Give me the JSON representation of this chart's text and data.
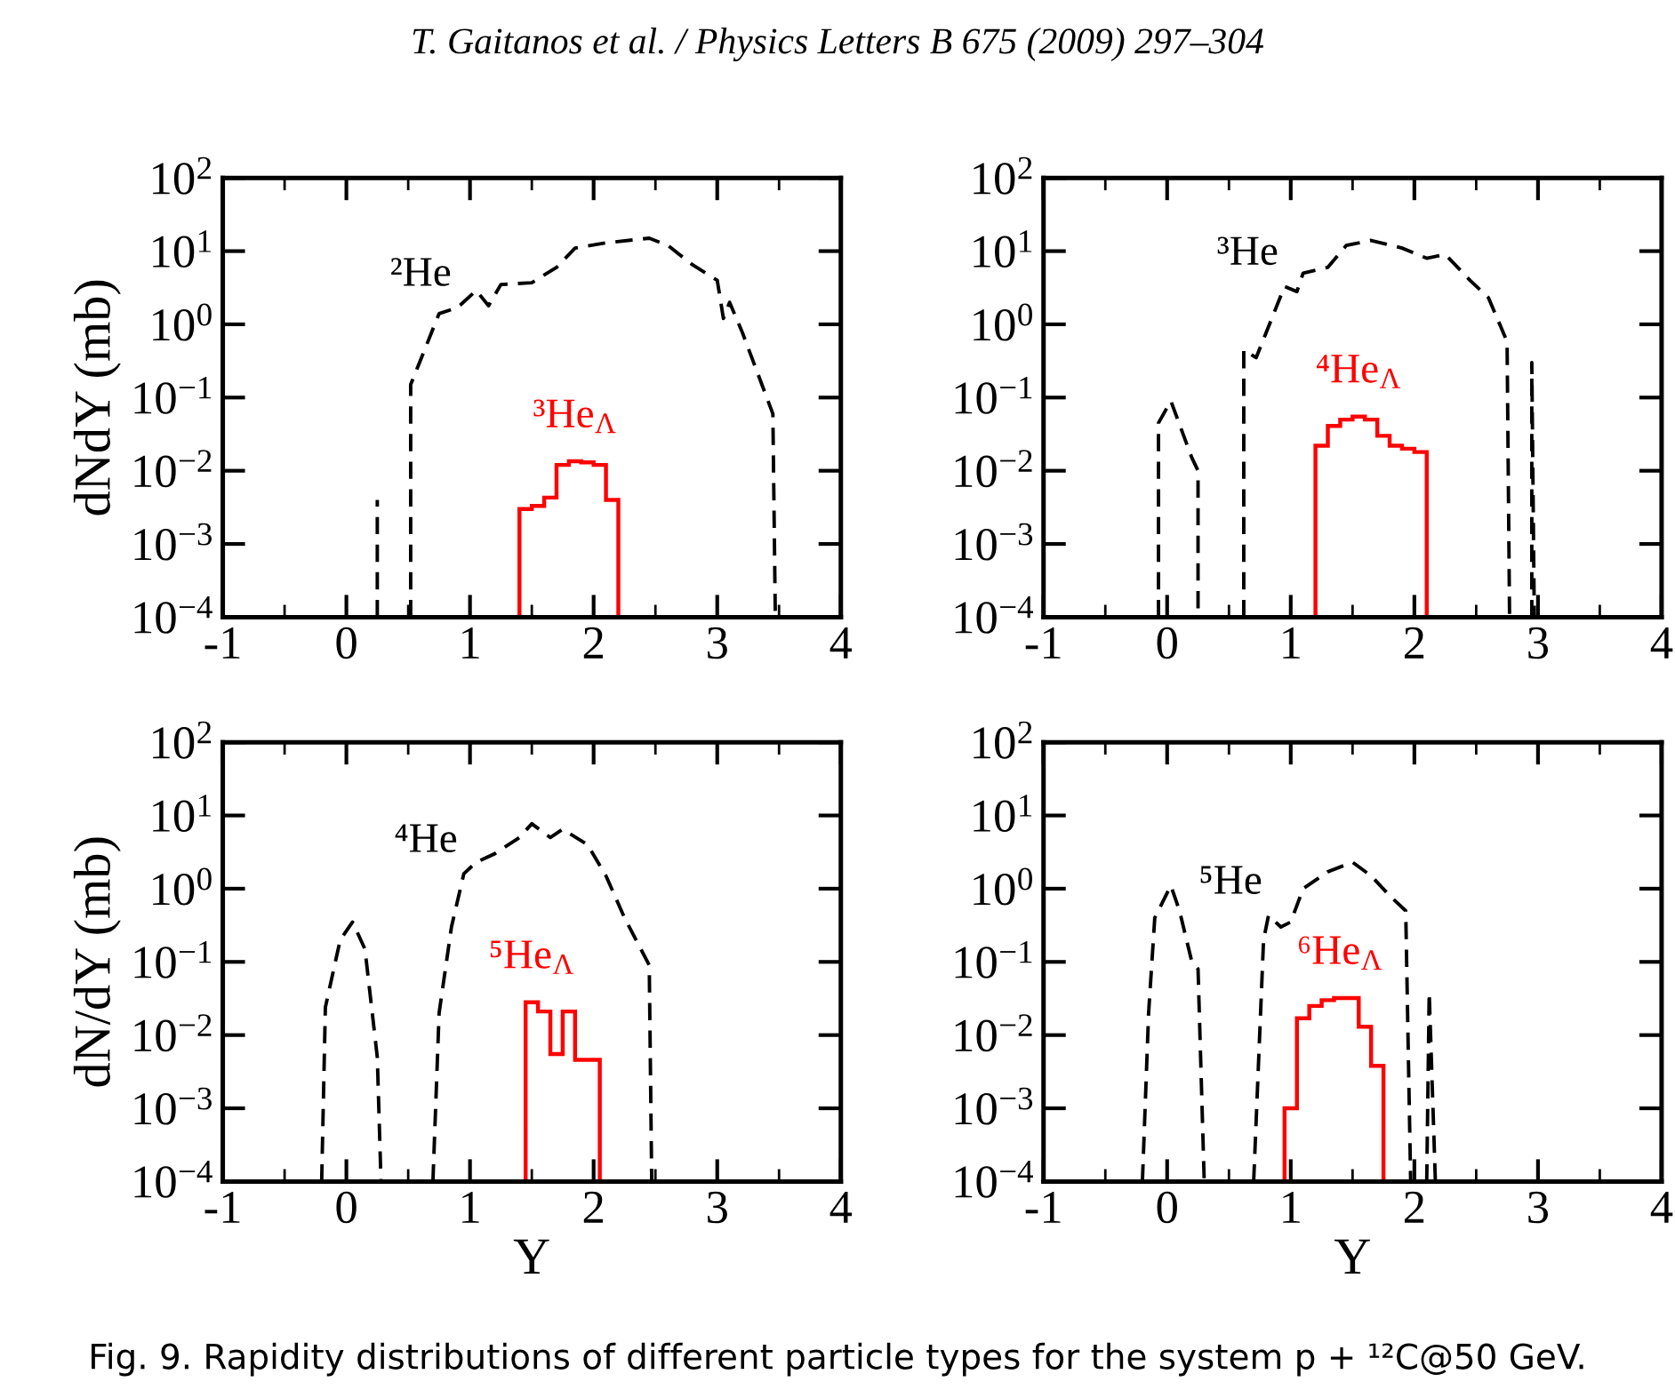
{
  "chart_data": [
    {
      "type": "line",
      "ylabel": "dNdY (mb)",
      "log": true,
      "xlim": [
        -1,
        4
      ],
      "xticks": [
        -1,
        0,
        1,
        2,
        3,
        4
      ],
      "ylim": [
        0.0001,
        100
      ],
      "yticks": [
        {
          "value": 0.0001,
          "label": "10$^{−4}$"
        },
        {
          "value": 0.001,
          "label": "10$^{−3}$"
        },
        {
          "value": 0.01,
          "label": "10$^{−2}$"
        },
        {
          "value": 0.1,
          "label": "10$^{−1}$"
        },
        {
          "value": 1,
          "label": "10$^{0}$"
        },
        {
          "value": 10,
          "label": "10$^{1}$"
        },
        {
          "value": 100,
          "label": "10$^{2}$"
        }
      ],
      "annotations": [
        "T. Gaitanos et al. / Physics Letters B 675 (2009) 297–304"
      ],
      "series": [
        {
          "name": "²He",
          "color": "#000000",
          "line_style": "dashed",
          "x": [
            0.25,
            0.25,
            null,
            0.52,
            0.52,
            0.75,
            0.9,
            1.05,
            1.15,
            1.25,
            1.5,
            1.7,
            1.85,
            2.1,
            2.45,
            2.6,
            2.8,
            3.0,
            3.05,
            3.1,
            3.2,
            3.45,
            3.47
          ],
          "values": [
            0.0001,
            0.004,
            null,
            0.0001,
            0.15,
            1.4,
            1.7,
            2.9,
            1.8,
            3.5,
            3.7,
            6,
            11,
            13,
            15,
            12,
            6.5,
            4,
            1.2,
            2,
            0.8,
            0.06,
            0.0001
          ]
        },
        {
          "name": "³He$_{Λ}$",
          "color": "#ff0000",
          "type": "histogram",
          "bins": [
            1.4,
            1.5,
            1.6,
            1.7,
            1.8,
            1.9,
            2.0,
            2.1,
            2.2
          ],
          "values": [
            0.003,
            0.0033,
            0.0043,
            0.012,
            0.0135,
            0.013,
            0.012,
            0.004
          ]
        }
      ]
    },
    {
      "type": "line",
      "log": true,
      "xlim": [
        -1,
        4
      ],
      "xticks": [
        -1,
        0,
        1,
        2,
        3,
        4
      ],
      "ylim": [
        0.0001,
        100
      ],
      "yticks": [
        {
          "value": 0.0001,
          "label": "10$^{−4}$"
        },
        {
          "value": 0.001,
          "label": "10$^{−3}$"
        },
        {
          "value": 0.01,
          "label": "10$^{−2}$"
        },
        {
          "value": 0.1,
          "label": "10$^{−1}$"
        },
        {
          "value": 1,
          "label": "10$^{0}$"
        },
        {
          "value": 10,
          "label": "10$^{1}$"
        },
        {
          "value": 100,
          "label": "10$^{2}$"
        }
      ],
      "series": [
        {
          "name": "³He",
          "color": "#000000",
          "line_style": "dashed",
          "x": [
            -0.07,
            -0.07,
            0.03,
            0.2,
            0.25,
            0.25,
            null,
            0.62,
            0.62,
            0.72,
            0.95,
            1.05,
            1.1,
            1.3,
            1.45,
            1.65,
            1.9,
            2.1,
            2.25,
            2.45,
            2.6,
            2.75,
            2.77,
            null,
            2.95,
            2.95,
            2.97
          ],
          "values": [
            0.0001,
            0.045,
            0.09,
            0.015,
            0.01,
            0.0001,
            null,
            0.0001,
            0.45,
            0.35,
            3.3,
            2.8,
            5,
            6,
            12,
            14,
            11,
            8,
            9,
            4,
            2.3,
            0.58,
            0.0001,
            null,
            0.0001,
            0.3,
            0.0001
          ]
        },
        {
          "name": "⁴He$_{Λ}$",
          "color": "#ff0000",
          "type": "histogram",
          "bins": [
            1.2,
            1.3,
            1.4,
            1.5,
            1.6,
            1.7,
            1.8,
            1.9,
            2.0,
            2.1
          ],
          "values": [
            0.022,
            0.041,
            0.05,
            0.055,
            0.05,
            0.03,
            0.022,
            0.02,
            0.018
          ]
        }
      ]
    },
    {
      "type": "line",
      "xlabel": "Y",
      "ylabel": "dN/dY (mb)",
      "log": true,
      "xlim": [
        -1,
        4
      ],
      "xticks": [
        -1,
        0,
        1,
        2,
        3,
        4
      ],
      "ylim": [
        0.0001,
        100
      ],
      "yticks": [
        {
          "value": 0.0001,
          "label": "10$^{−4}$"
        },
        {
          "value": 0.001,
          "label": "10$^{−3}$"
        },
        {
          "value": 0.01,
          "label": "10$^{−2}$"
        },
        {
          "value": 0.1,
          "label": "10$^{−1}$"
        },
        {
          "value": 1,
          "label": "10$^{0}$"
        },
        {
          "value": 10,
          "label": "10$^{1}$"
        },
        {
          "value": 100,
          "label": "10$^{2}$"
        }
      ],
      "series": [
        {
          "name": "⁴He",
          "color": "#000000",
          "line_style": "dashed",
          "x": [
            -0.2,
            -0.17,
            -0.05,
            0.05,
            0.15,
            0.25,
            0.28,
            null,
            0.7,
            0.75,
            0.85,
            0.95,
            1.05,
            1.2,
            1.4,
            1.5,
            1.65,
            1.75,
            1.95,
            2.1,
            2.25,
            2.45,
            2.47
          ],
          "values": [
            0.0001,
            0.024,
            0.2,
            0.35,
            0.15,
            0.005,
            0.0001,
            null,
            0.0001,
            0.02,
            0.3,
            1.6,
            2.3,
            3,
            5,
            7.7,
            5,
            6.5,
            4,
            1.5,
            0.4,
            0.09,
            0.0001
          ]
        },
        {
          "name": "⁵He$_{Λ}$",
          "color": "#ff0000",
          "type": "histogram",
          "bins": [
            1.45,
            1.55,
            1.65,
            1.75,
            1.85,
            2.05
          ],
          "values": [
            0.028,
            0.021,
            0.0055,
            0.021,
            0.0046
          ]
        }
      ]
    },
    {
      "type": "line",
      "xlabel": "Y",
      "log": true,
      "xlim": [
        -1,
        4
      ],
      "xticks": [
        -1,
        0,
        1,
        2,
        3,
        4
      ],
      "ylim": [
        0.0001,
        100
      ],
      "yticks": [
        {
          "value": 0.0001,
          "label": "10$^{−4}$"
        },
        {
          "value": 0.001,
          "label": "10$^{−3}$"
        },
        {
          "value": 0.01,
          "label": "10$^{−2}$"
        },
        {
          "value": 0.1,
          "label": "10$^{−1}$"
        },
        {
          "value": 1,
          "label": "10$^{0}$"
        },
        {
          "value": 10,
          "label": "10$^{1}$"
        },
        {
          "value": 100,
          "label": "10$^{2}$"
        }
      ],
      "annotations": [
        "Fig. 9. Rapidity distributions of different particle types for the system p + ¹²C@50 GeV."
      ],
      "series": [
        {
          "name": "⁵He",
          "color": "#000000",
          "line_style": "dashed",
          "x": [
            -0.2,
            -0.15,
            -0.1,
            0.03,
            0.1,
            0.2,
            0.25,
            0.3,
            null,
            0.7,
            0.78,
            0.82,
            0.92,
            1.0,
            1.1,
            1.3,
            1.5,
            1.65,
            1.8,
            1.93,
            1.97,
            null,
            2.1,
            2.12,
            2.17
          ],
          "values": [
            0.0001,
            0.02,
            0.4,
            1.1,
            0.5,
            0.1,
            0.08,
            0.0001,
            null,
            0.0001,
            0.2,
            0.43,
            0.3,
            0.35,
            1.0,
            1.7,
            2.3,
            1.5,
            0.8,
            0.5,
            0.0001,
            null,
            0.0001,
            0.038,
            0.0001
          ]
        },
        {
          "name": "⁶He$_{Λ}$",
          "color": "#ff0000",
          "type": "histogram",
          "bins": [
            0.95,
            1.05,
            1.15,
            1.25,
            1.35,
            1.45,
            1.55,
            1.65,
            1.75
          ],
          "values": [
            0.001,
            0.017,
            0.025,
            0.03,
            0.032,
            0.032,
            0.013,
            0.0038
          ]
        }
      ]
    }
  ]
}
